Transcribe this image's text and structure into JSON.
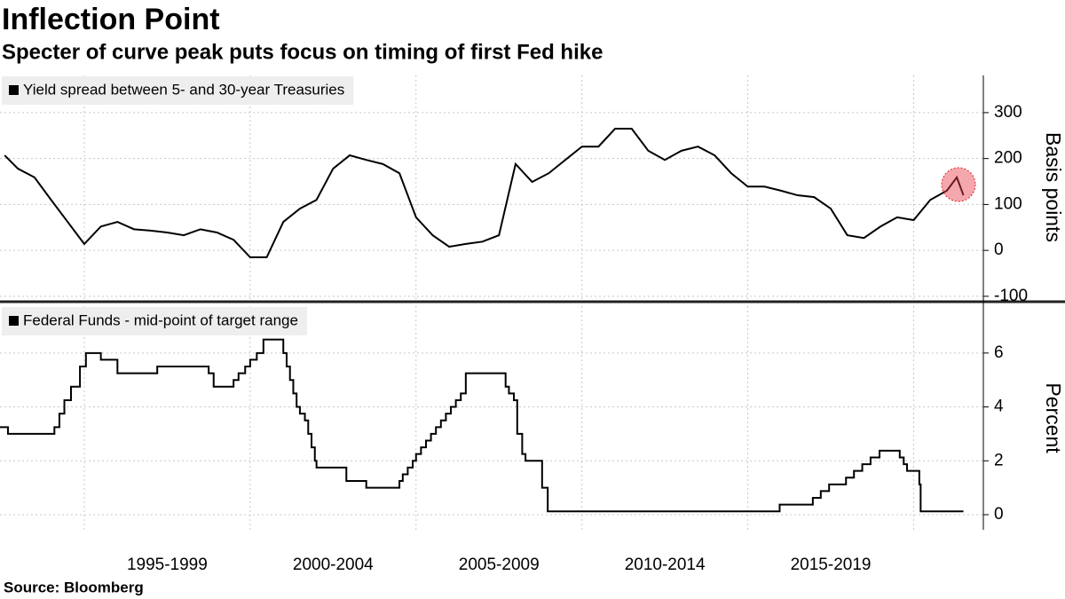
{
  "title": "Inflection Point",
  "subtitle": "Specter of curve peak puts focus on timing of first Fed hike",
  "source": "Source:  Bloomberg",
  "chart_data": [
    {
      "type": "line",
      "y_axis_label": "Basis points",
      "legend": "top-left",
      "x": [
        1992.6,
        1993.0,
        1993.5,
        1994.0,
        1994.5,
        1995.0,
        1995.5,
        1996.0,
        1996.5,
        1997.0,
        1997.5,
        1998.0,
        1998.5,
        1999.0,
        1999.5,
        2000.0,
        2000.5,
        2001.0,
        2001.5,
        2002.0,
        2002.5,
        2003.0,
        2003.5,
        2004.0,
        2004.5,
        2005.0,
        2005.5,
        2006.0,
        2006.5,
        2007.0,
        2007.5,
        2008.0,
        2008.5,
        2009.0,
        2009.5,
        2010.0,
        2010.5,
        2011.0,
        2011.5,
        2012.0,
        2012.5,
        2013.0,
        2013.5,
        2014.0,
        2014.5,
        2015.0,
        2015.5,
        2016.0,
        2016.5,
        2017.0,
        2017.5,
        2018.0,
        2018.5,
        2019.0,
        2019.5,
        2020.0,
        2020.5,
        2021.0,
        2021.3,
        2021.5
      ],
      "series": [
        {
          "name": "Yield spread between 5- and 30-year Treasuries",
          "color": "#000000",
          "values": [
            207,
            178,
            159,
            110,
            62,
            14,
            52,
            62,
            46,
            43,
            39,
            33,
            46,
            39,
            23,
            -15,
            -15,
            62,
            91,
            110,
            178,
            207,
            197,
            188,
            168,
            72,
            33,
            8,
            14,
            19,
            33,
            188,
            149,
            168,
            197,
            226,
            226,
            265,
            265,
            217,
            197,
            217,
            226,
            207,
            168,
            139,
            139,
            130,
            120,
            116,
            91,
            33,
            27,
            52,
            72,
            66,
            110,
            130,
            159,
            120
          ]
        }
      ],
      "xlim": [
        1992.46,
        2022.1
      ],
      "xgrid": [
        1995,
        2000,
        2005,
        2010,
        2015,
        2020
      ],
      "ylim": [
        -106,
        381
      ],
      "yticks": [
        -100,
        0,
        100,
        200,
        300
      ],
      "grid": true
    },
    {
      "type": "line",
      "step": "post",
      "y_axis_label": "Percent",
      "legend": "top-left",
      "x": [
        1992.46,
        1992.7,
        1994.1,
        1994.25,
        1994.4,
        1994.6,
        1994.87,
        1995.05,
        1995.5,
        1996.0,
        1997.2,
        1998.75,
        1998.9,
        1999.5,
        1999.65,
        1999.85,
        2000.0,
        2000.2,
        2000.4,
        2001.0,
        2001.1,
        2001.2,
        2001.3,
        2001.4,
        2001.5,
        2001.65,
        2001.75,
        2001.85,
        2001.95,
        2002.0,
        2002.9,
        2003.5,
        2004.5,
        2004.6,
        2004.75,
        2004.9,
        2005.0,
        2005.15,
        2005.3,
        2005.45,
        2005.6,
        2005.75,
        2005.9,
        2006.05,
        2006.2,
        2006.35,
        2006.5,
        2007.7,
        2007.8,
        2007.95,
        2008.05,
        2008.2,
        2008.3,
        2008.8,
        2008.97,
        2015.96,
        2016.96,
        2017.2,
        2017.45,
        2017.96,
        2018.2,
        2018.45,
        2018.7,
        2018.97,
        2019.58,
        2019.7,
        2019.8,
        2020.17,
        2020.21,
        2021.5
      ],
      "series": [
        {
          "name": "Federal Funds - mid-point of target range",
          "color": "#000000",
          "values": [
            3.25,
            3.0,
            3.25,
            3.75,
            4.25,
            4.75,
            5.5,
            6.0,
            5.75,
            5.25,
            5.5,
            5.25,
            4.75,
            5.0,
            5.25,
            5.5,
            5.75,
            6.0,
            6.5,
            6.0,
            5.5,
            5.0,
            4.5,
            4.0,
            3.75,
            3.5,
            3.0,
            2.5,
            2.0,
            1.75,
            1.25,
            1.0,
            1.25,
            1.5,
            1.75,
            2.0,
            2.25,
            2.5,
            2.75,
            3.0,
            3.25,
            3.5,
            3.75,
            4.0,
            4.25,
            4.5,
            5.25,
            4.75,
            4.5,
            4.25,
            3.0,
            2.25,
            2.0,
            1.0,
            0.125,
            0.375,
            0.625,
            0.875,
            1.125,
            1.375,
            1.625,
            1.875,
            2.125,
            2.375,
            2.125,
            1.875,
            1.625,
            1.125,
            0.125,
            0.125
          ]
        }
      ],
      "xlim": [
        1992.46,
        2022.1
      ],
      "xgrid": [
        1995,
        2000,
        2005,
        2010,
        2015,
        2020
      ],
      "xticks": [
        {
          "value": 1997.5,
          "label": "1995-1999"
        },
        {
          "value": 2002.5,
          "label": "2000-2004"
        },
        {
          "value": 2007.5,
          "label": "2005-2009"
        },
        {
          "value": 2012.5,
          "label": "2010-2014"
        },
        {
          "value": 2017.5,
          "label": "2015-2019"
        }
      ],
      "ylim": [
        -0.56,
        7.74
      ],
      "yticks": [
        0,
        2,
        4,
        6
      ],
      "grid": true
    }
  ]
}
